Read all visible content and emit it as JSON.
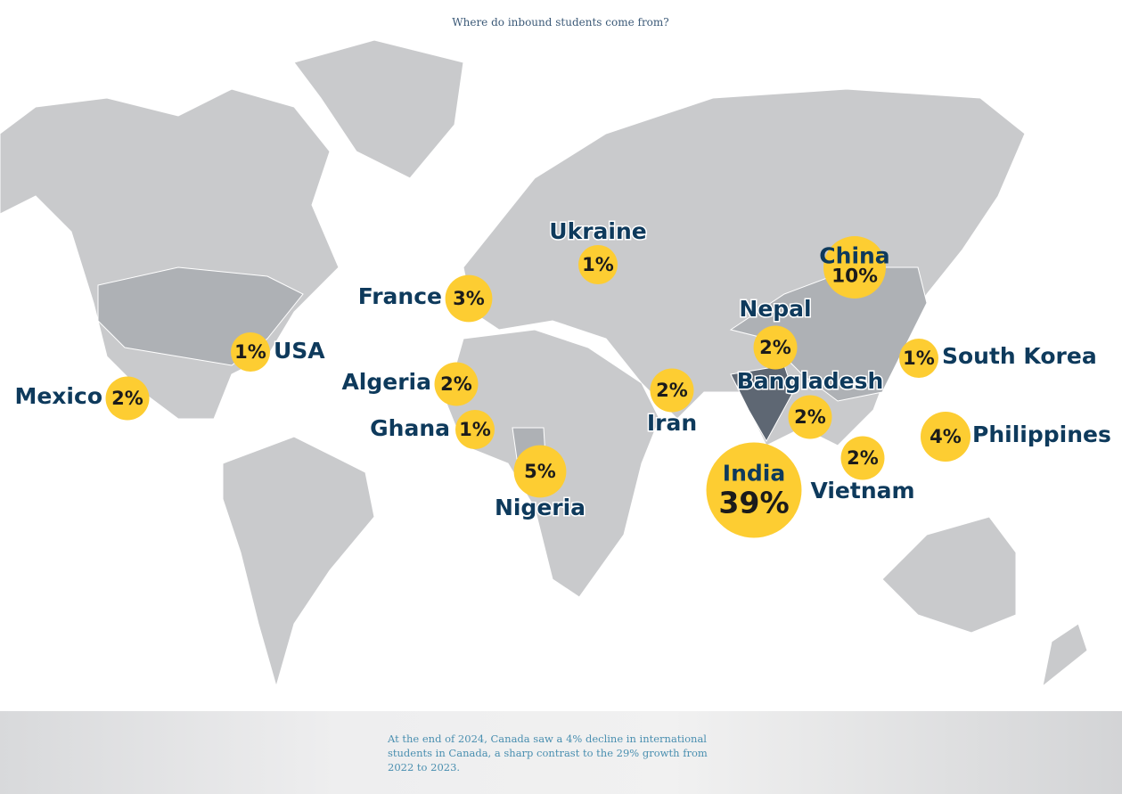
{
  "title": "Where do inbound students come from?",
  "countries": [
    {
      "name": "Ukraine",
      "value": 1,
      "label": "1%"
    },
    {
      "name": "China",
      "value": 10,
      "label": "10%"
    },
    {
      "name": "France",
      "value": 3,
      "label": "3%"
    },
    {
      "name": "Nepal",
      "value": 2,
      "label": "2%"
    },
    {
      "name": "USA",
      "value": 1,
      "label": "1%"
    },
    {
      "name": "South Korea",
      "value": 1,
      "label": "1%"
    },
    {
      "name": "Mexico",
      "value": 2,
      "label": "2%"
    },
    {
      "name": "Algeria",
      "value": 2,
      "label": "2%"
    },
    {
      "name": "Bangladesh",
      "value": 2,
      "label": "2%"
    },
    {
      "name": "Iran",
      "value": 2,
      "label": "2%"
    },
    {
      "name": "Ghana",
      "value": 1,
      "label": "1%"
    },
    {
      "name": "Philippines",
      "value": 4,
      "label": "4%"
    },
    {
      "name": "Vietnam",
      "value": 2,
      "label": "2%"
    },
    {
      "name": "Nigeria",
      "value": 5,
      "label": "5%"
    },
    {
      "name": "India",
      "value": 39,
      "label": "39%"
    }
  ],
  "footnote": "At the end of 2024, Canada saw a 4% decline in international students in Canada, a sharp contrast to the 29% growth from 2022 to 2023."
}
